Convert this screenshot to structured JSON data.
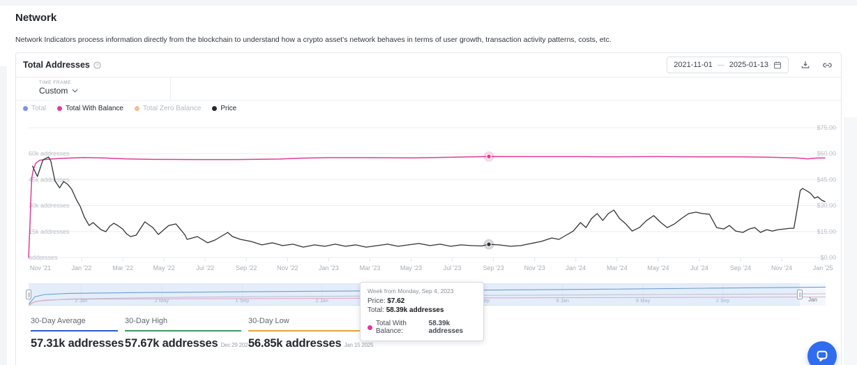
{
  "page": {
    "title": "Network",
    "description": "Network Indicators process information directly from the blockchain to understand how a crypto asset's network behaves in terms of user growth, transaction activity patterns, costs, etc."
  },
  "card": {
    "title": "Total Addresses",
    "date_range": {
      "start": "2021-11-01",
      "separator": "—",
      "end": "2025-01-13"
    },
    "time_frame": {
      "label": "TIME FRAME",
      "value": "Custom"
    },
    "legend": [
      {
        "label": "Total",
        "color": "#7b8ff7",
        "active": false
      },
      {
        "label": "Total With Balance",
        "color": "#e5399e",
        "active": true
      },
      {
        "label": "Total Zero Balance",
        "color": "#f6bd8f",
        "active": false
      },
      {
        "label": "Price",
        "color": "#26262b",
        "active": true
      }
    ]
  },
  "tooltip": {
    "title": "Week from Monday, Sep 4, 2023",
    "price_label": "Price:",
    "price_value": "$7.62",
    "total_label": "Total:",
    "total_value": "58.39k addresses",
    "series_label": "Total With Balance:",
    "series_value": "58.39k addresses",
    "series_color": "#e5399e"
  },
  "stats": [
    {
      "label": "30-Day Average",
      "value": "57.31k addresses",
      "date": "",
      "accent": "#2d5bcc"
    },
    {
      "label": "30-Day High",
      "value": "57.67k addresses",
      "date": "Dec 29 2024",
      "accent": "#3d9960"
    },
    {
      "label": "30-Day Low",
      "value": "56.85k addresses",
      "date": "Jan 15 2025",
      "accent": "#e6a23c"
    }
  ],
  "chart_data": {
    "type": "line",
    "title": "Total Addresses",
    "x_ticks": [
      "Nov '21",
      "Jan '22",
      "Mar '22",
      "May '22",
      "Jul '22",
      "Sep '22",
      "Nov '22",
      "Jan '23",
      "Mar '23",
      "May '23",
      "Jul '23",
      "Sep '23",
      "Nov '23",
      "Jan '24",
      "Mar '24",
      "May '24",
      "Jul '24",
      "Sep '24",
      "Nov '24",
      "Jan '25"
    ],
    "left_axis": {
      "title": "addresses",
      "unit": "k addresses",
      "tick_values": [
        60,
        45,
        30,
        15,
        0
      ],
      "tick_labels": [
        "60k addresses",
        "45k addresses",
        "30k addresses",
        "15k addresses",
        "addresses"
      ],
      "max": 75
    },
    "right_axis": {
      "title": "price",
      "unit": "USD",
      "tick_values": [
        75,
        60,
        45,
        30,
        15,
        0
      ],
      "tick_labels": [
        "$75.00",
        "$60.00",
        "$45.00",
        "$30.00",
        "$15.00",
        "$0.00"
      ],
      "max": 75
    },
    "series": [
      {
        "name": "Total With Balance",
        "axis": "left",
        "unit": "k addresses",
        "color": "#e23a97",
        "width": 1.5,
        "points": [
          [
            0,
            0
          ],
          [
            0.002,
            22
          ],
          [
            0.003,
            36
          ],
          [
            0.004,
            46
          ],
          [
            0.006,
            51
          ],
          [
            0.009,
            54.5
          ],
          [
            0.014,
            56.2
          ],
          [
            0.025,
            56.8
          ],
          [
            0.042,
            57.3
          ],
          [
            0.069,
            57.8
          ],
          [
            0.095,
            57.5
          ],
          [
            0.121,
            57
          ],
          [
            0.156,
            56.7
          ],
          [
            0.209,
            56.6
          ],
          [
            0.262,
            56.6
          ],
          [
            0.315,
            56.9
          ],
          [
            0.341,
            57.4
          ],
          [
            0.376,
            57.7
          ],
          [
            0.429,
            57.7
          ],
          [
            0.482,
            57.6
          ],
          [
            0.534,
            58
          ],
          [
            0.578,
            58.39
          ],
          [
            0.631,
            58.3
          ],
          [
            0.684,
            58.3
          ],
          [
            0.736,
            58.2
          ],
          [
            0.789,
            58.3
          ],
          [
            0.842,
            58.2
          ],
          [
            0.895,
            58.2
          ],
          [
            0.93,
            58
          ],
          [
            0.965,
            57.5
          ],
          [
            0.978,
            57
          ],
          [
            0.991,
            57.5
          ],
          [
            1,
            57.5
          ]
        ]
      },
      {
        "name": "Price",
        "axis": "right",
        "unit": "USD",
        "color": "#2f3136",
        "width": 1.3,
        "points": [
          [
            0.005,
            52.8
          ],
          [
            0.011,
            46.8
          ],
          [
            0.018,
            56.4
          ],
          [
            0.025,
            58.1
          ],
          [
            0.028,
            55.6
          ],
          [
            0.033,
            44.4
          ],
          [
            0.039,
            40.3
          ],
          [
            0.044,
            43.9
          ],
          [
            0.049,
            42.3
          ],
          [
            0.054,
            39.5
          ],
          [
            0.06,
            33.5
          ],
          [
            0.065,
            29.4
          ],
          [
            0.07,
            23.4
          ],
          [
            0.076,
            18.5
          ],
          [
            0.081,
            20.2
          ],
          [
            0.086,
            18.1
          ],
          [
            0.091,
            16.1
          ],
          [
            0.097,
            14.9
          ],
          [
            0.102,
            18.1
          ],
          [
            0.107,
            19.8
          ],
          [
            0.112,
            18.5
          ],
          [
            0.118,
            16.5
          ],
          [
            0.123,
            13.7
          ],
          [
            0.128,
            12.1
          ],
          [
            0.135,
            12.9
          ],
          [
            0.146,
            20.6
          ],
          [
            0.156,
            17.3
          ],
          [
            0.163,
            13.3
          ],
          [
            0.176,
            18.5
          ],
          [
            0.185,
            19.4
          ],
          [
            0.196,
            13.3
          ],
          [
            0.199,
            10.5
          ],
          [
            0.212,
            12.1
          ],
          [
            0.225,
            8.5
          ],
          [
            0.234,
            10.1
          ],
          [
            0.246,
            13.3
          ],
          [
            0.25,
            14.5
          ],
          [
            0.256,
            12.1
          ],
          [
            0.266,
            10.5
          ],
          [
            0.279,
            9.3
          ],
          [
            0.293,
            7.3
          ],
          [
            0.306,
            8.5
          ],
          [
            0.319,
            6.9
          ],
          [
            0.332,
            7.7
          ],
          [
            0.345,
            6
          ],
          [
            0.359,
            7.3
          ],
          [
            0.372,
            6.5
          ],
          [
            0.385,
            7.7
          ],
          [
            0.398,
            6.5
          ],
          [
            0.411,
            7.3
          ],
          [
            0.424,
            6
          ],
          [
            0.438,
            6.9
          ],
          [
            0.451,
            7.7
          ],
          [
            0.464,
            6.5
          ],
          [
            0.477,
            7.3
          ],
          [
            0.49,
            8.1
          ],
          [
            0.504,
            6.9
          ],
          [
            0.517,
            7.7
          ],
          [
            0.53,
            6.5
          ],
          [
            0.543,
            7.3
          ],
          [
            0.556,
            6.9
          ],
          [
            0.569,
            6.7
          ],
          [
            0.578,
            7.62
          ],
          [
            0.591,
            7.3
          ],
          [
            0.605,
            6.5
          ],
          [
            0.618,
            6.9
          ],
          [
            0.631,
            8.1
          ],
          [
            0.644,
            9.3
          ],
          [
            0.657,
            11.3
          ],
          [
            0.666,
            10.5
          ],
          [
            0.675,
            12.9
          ],
          [
            0.684,
            15.3
          ],
          [
            0.693,
            20.2
          ],
          [
            0.7,
            17.3
          ],
          [
            0.707,
            22.6
          ],
          [
            0.714,
            25.4
          ],
          [
            0.721,
            21.4
          ],
          [
            0.728,
            25.4
          ],
          [
            0.735,
            27.4
          ],
          [
            0.742,
            22.6
          ],
          [
            0.75,
            19.4
          ],
          [
            0.758,
            15.3
          ],
          [
            0.767,
            17.3
          ],
          [
            0.776,
            21.4
          ],
          [
            0.785,
            24.2
          ],
          [
            0.794,
            20.2
          ],
          [
            0.802,
            17.3
          ],
          [
            0.811,
            19.4
          ],
          [
            0.82,
            22.6
          ],
          [
            0.829,
            25.4
          ],
          [
            0.838,
            26.2
          ],
          [
            0.846,
            25.4
          ],
          [
            0.855,
            25
          ],
          [
            0.864,
            17.3
          ],
          [
            0.873,
            16.5
          ],
          [
            0.88,
            18.5
          ],
          [
            0.888,
            15.3
          ],
          [
            0.897,
            14.5
          ],
          [
            0.905,
            16.5
          ],
          [
            0.912,
            17.3
          ],
          [
            0.919,
            14.5
          ],
          [
            0.927,
            16.1
          ],
          [
            0.934,
            15.3
          ],
          [
            0.941,
            16.1
          ],
          [
            0.949,
            16.5
          ],
          [
            0.956,
            16.9
          ],
          [
            0.961,
            16.9
          ],
          [
            0.965,
            27.4
          ],
          [
            0.969,
            38.7
          ],
          [
            0.972,
            39.9
          ],
          [
            0.978,
            38.3
          ],
          [
            0.982,
            37.1
          ],
          [
            0.987,
            34.3
          ],
          [
            0.991,
            35.1
          ],
          [
            0.996,
            33.1
          ],
          [
            1,
            32.3
          ]
        ]
      }
    ],
    "markers": [
      {
        "series": "Total With Balance",
        "x": 0.578,
        "value": 58.39
      },
      {
        "series": "Price",
        "x": 0.578,
        "value": 7.62
      }
    ]
  },
  "minimap": {
    "labels": [
      {
        "text": "2 Jan",
        "x": 0.066
      },
      {
        "text": "2 May",
        "x": 0.167
      },
      {
        "text": "1 Sep",
        "x": 0.268
      },
      {
        "text": "2 Jan",
        "x": 0.368
      },
      {
        "text": "5 May",
        "x": 0.469
      },
      {
        "text": "4 Sep",
        "x": 0.57
      },
      {
        "text": "6 Jan",
        "x": 0.67
      },
      {
        "text": "6 May",
        "x": 0.771
      },
      {
        "text": "2 Sep",
        "x": 0.871
      }
    ],
    "end_label": "Jan",
    "series": [
      {
        "name": "Total",
        "color": "#6f9bd8",
        "points": [
          [
            0,
            0.95
          ],
          [
            0.008,
            0.6
          ],
          [
            0.02,
            0.5
          ],
          [
            0.05,
            0.45
          ],
          [
            0.15,
            0.41
          ],
          [
            0.3,
            0.37
          ],
          [
            0.5,
            0.32
          ],
          [
            0.7,
            0.27
          ],
          [
            0.85,
            0.22
          ],
          [
            1,
            0.17
          ]
        ]
      },
      {
        "name": "Price",
        "color": "#bcc3ce",
        "points": [
          [
            0,
            0.95
          ],
          [
            0.01,
            0.8
          ],
          [
            0.05,
            0.7
          ],
          [
            0.2,
            0.62
          ],
          [
            0.5,
            0.55
          ],
          [
            0.8,
            0.5
          ],
          [
            1,
            0.47
          ]
        ]
      },
      {
        "name": "Total With Balance",
        "color": "#e7a6cd",
        "points": [
          [
            0,
            1
          ],
          [
            0.006,
            0.84
          ],
          [
            0.02,
            0.75
          ],
          [
            0.06,
            0.71
          ],
          [
            0.2,
            0.69
          ],
          [
            0.5,
            0.66
          ],
          [
            0.8,
            0.63
          ],
          [
            1,
            0.61
          ]
        ]
      }
    ]
  }
}
